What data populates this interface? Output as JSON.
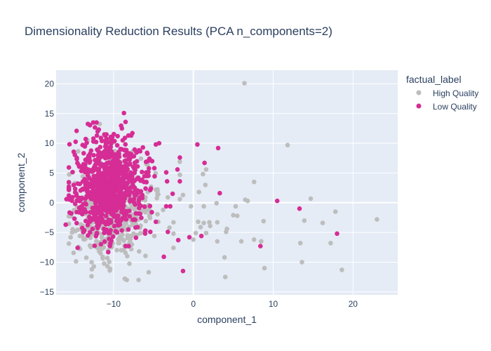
{
  "chart_data": {
    "type": "scatter",
    "title": "Dimensionality Reduction Results (PCA n_components=2)",
    "xlabel": "component_1",
    "ylabel": "component_2",
    "xlim": [
      -17.2,
      25.6
    ],
    "ylim": [
      -15.5,
      22.3
    ],
    "xticks": [
      -10,
      0,
      10,
      20
    ],
    "yticks": [
      -15,
      -10,
      -5,
      0,
      5,
      10,
      15,
      20
    ],
    "grid": true,
    "legend_title": "factual_label",
    "legend_position": "right",
    "series": [
      {
        "name": "High Quality",
        "color": "#bdbdbd",
        "cluster": {
          "center": [
            -10.5,
            -2
          ],
          "spread": [
            2.3,
            4.2
          ],
          "count": 520
        },
        "points": [
          [
            6.4,
            20.1
          ],
          [
            11.8,
            9.7
          ],
          [
            7.6,
            3.5
          ],
          [
            6.5,
            0.5
          ],
          [
            6.8,
            0.3
          ],
          [
            5.3,
            -0.6
          ],
          [
            5.0,
            -2.1
          ],
          [
            5.5,
            -2.2
          ],
          [
            8.8,
            -3.1
          ],
          [
            7.6,
            -6.2
          ],
          [
            8.5,
            -6.5
          ],
          [
            6.0,
            -6.5
          ],
          [
            3.0,
            -6.5
          ],
          [
            4.2,
            -4.4
          ],
          [
            4.1,
            -4.9
          ],
          [
            3.0,
            -3.3
          ],
          [
            2.0,
            -3.3
          ],
          [
            2.1,
            -3.9
          ],
          [
            1.6,
            -5.1
          ],
          [
            1.3,
            -3.4
          ],
          [
            0.6,
            -3.2
          ],
          [
            0.9,
            -4.1
          ],
          [
            0.0,
            -6.2
          ],
          [
            0.3,
            -5.1
          ],
          [
            1.6,
            5.6
          ],
          [
            1.2,
            4.8
          ],
          [
            1.5,
            3.0
          ],
          [
            0.7,
            1.8
          ],
          [
            -0.3,
            -0.6
          ],
          [
            1.3,
            -0.6
          ],
          [
            2.9,
            -0.1
          ],
          [
            3.9,
            -9.2
          ],
          [
            4.0,
            -12.5
          ],
          [
            8.9,
            -11.0
          ],
          [
            13.6,
            -10.0
          ],
          [
            13.4,
            -6.8
          ],
          [
            13.9,
            -3.0
          ],
          [
            14.7,
            0.7
          ],
          [
            16.2,
            -3.4
          ],
          [
            17.2,
            -6.8
          ],
          [
            17.8,
            -1.5
          ],
          [
            18.6,
            -11.3
          ],
          [
            23.0,
            -2.8
          ],
          [
            -1.7,
            6.9
          ],
          [
            -1.7,
            4.7
          ],
          [
            -2.5,
            -3.3
          ],
          [
            -2.5,
            -5.2
          ],
          [
            -3.0,
            -4.2
          ],
          [
            -2.5,
            -7.6
          ],
          [
            -1.3,
            1.3
          ],
          [
            -1.7,
            0.6
          ],
          [
            -3.2,
            0.9
          ],
          [
            -3.8,
            -1.2
          ],
          [
            -4.4,
            -3.2
          ],
          [
            -4.9,
            -5.6
          ],
          [
            -6.8,
            -8.2
          ],
          [
            -8.6,
            -12.8
          ],
          [
            -5.6,
            -11.7
          ],
          [
            -6.0,
            0.9
          ],
          [
            -5.3,
            2.7
          ],
          [
            -4.7,
            2.2
          ],
          [
            -4.4,
            1.4
          ],
          [
            -5.5,
            -2.2
          ],
          [
            -6.0,
            -1.6
          ]
        ]
      },
      {
        "name": "Low Quality",
        "color": "#d62c95",
        "cluster": {
          "center": [
            -10.7,
            2.8
          ],
          "spread": [
            2.0,
            3.9
          ],
          "count": 900
        },
        "points": [
          [
            -8.7,
            15.1
          ],
          [
            3.1,
            9.2
          ],
          [
            1.4,
            6.7
          ],
          [
            -2.0,
            5.6
          ],
          [
            -1.7,
            7.6
          ],
          [
            -1.7,
            3.6
          ],
          [
            3.3,
            1.6
          ],
          [
            0.5,
            9.8
          ],
          [
            -4.7,
            9.8
          ],
          [
            -4.3,
            10.0
          ],
          [
            -5.5,
            7.4
          ],
          [
            -5.9,
            5.1
          ],
          [
            -3.4,
            5.1
          ],
          [
            -3.3,
            3.6
          ],
          [
            -2.6,
            1.5
          ],
          [
            -2.9,
            -0.6
          ],
          [
            -3.4,
            -0.6
          ],
          [
            -5.2,
            -1.6
          ],
          [
            -4.7,
            -3.2
          ],
          [
            -5.4,
            -4.9
          ],
          [
            -3.2,
            -4.9
          ],
          [
            -1.3,
            -11.5
          ],
          [
            -3.7,
            -9.1
          ],
          [
            -7.2,
            -5.9
          ],
          [
            -7.0,
            -4.1
          ],
          [
            -8.1,
            -7.3
          ],
          [
            -7.4,
            -2.8
          ],
          [
            -7.2,
            -1.8
          ],
          [
            -6.4,
            0.8
          ],
          [
            -6.2,
            3.5
          ],
          [
            -7.0,
            6.1
          ],
          [
            -7.8,
            11.3
          ],
          [
            -8.5,
            13.6
          ],
          [
            -5.8,
            8.4
          ],
          [
            -5.7,
            7.0
          ],
          [
            -5.8,
            4.5
          ],
          [
            -5.9,
            3.5
          ],
          [
            -6.4,
            1.3
          ],
          [
            -7.3,
            -0.3
          ],
          [
            -6.8,
            -0.9
          ],
          [
            10.5,
            0.3
          ],
          [
            13.3,
            -1.0
          ],
          [
            18.0,
            -5.2
          ],
          [
            8.4,
            -7.3
          ],
          [
            1.0,
            -5.6
          ],
          [
            -0.5,
            -5.8
          ],
          [
            -1.9,
            -6.3
          ],
          [
            -14.5,
            -7.6
          ],
          [
            -15.9,
            0.6
          ],
          [
            -15.3,
            -1.8
          ],
          [
            -14.9,
            -2.7
          ],
          [
            -16.0,
            -3.7
          ],
          [
            -12.0,
            12.0
          ]
        ]
      }
    ]
  }
}
